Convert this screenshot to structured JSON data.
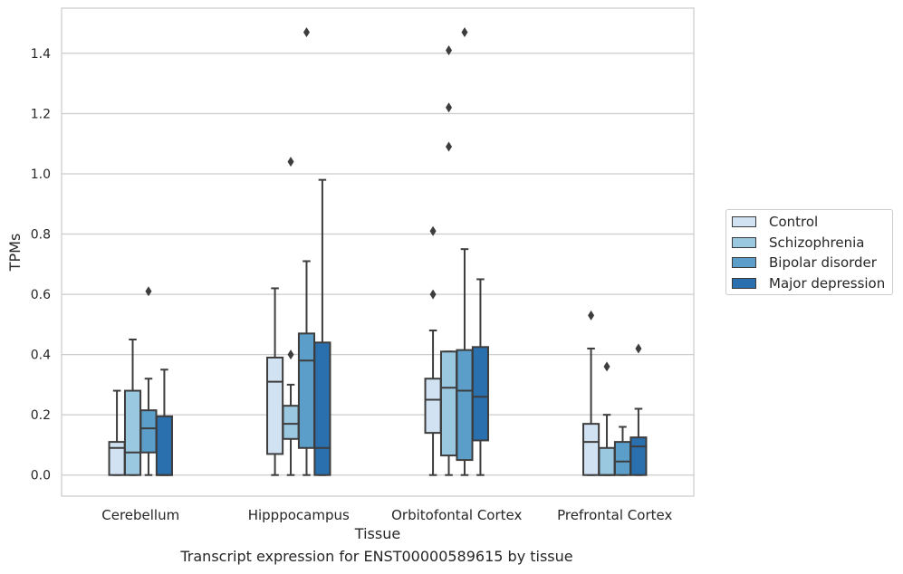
{
  "caption": "Transcript expression for ENST00000589615 by tissue",
  "chart_data": {
    "type": "box",
    "title": "",
    "xlabel": "Tissue",
    "ylabel": "TPMs",
    "ylim": [
      -0.07,
      1.55
    ],
    "yticks": [
      0.0,
      0.2,
      0.4,
      0.6,
      0.8,
      1.0,
      1.2,
      1.4
    ],
    "ytick_labels": [
      "0.0",
      "0.2",
      "0.4",
      "0.6",
      "0.8",
      "1.0",
      "1.2",
      "1.4"
    ],
    "grid": "horizontal",
    "legend_position": "right",
    "categories": [
      "Cerebellum",
      "Hipppocampus",
      "Orbitofontal Cortex",
      "Prefrontal Cortex"
    ],
    "series": [
      {
        "name": "Control",
        "color": "#d1e2f2",
        "boxes": [
          {
            "min": 0.0,
            "q1": 0.0,
            "median": 0.09,
            "q3": 0.11,
            "max": 0.28,
            "outliers": []
          },
          {
            "min": 0.0,
            "q1": 0.07,
            "median": 0.31,
            "q3": 0.39,
            "max": 0.62,
            "outliers": []
          },
          {
            "min": 0.0,
            "q1": 0.14,
            "median": 0.25,
            "q3": 0.32,
            "max": 0.48,
            "outliers": [
              0.6,
              0.81
            ]
          },
          {
            "min": 0.0,
            "q1": 0.0,
            "median": 0.11,
            "q3": 0.17,
            "max": 0.42,
            "outliers": [
              0.53
            ]
          }
        ]
      },
      {
        "name": "Schizophrenia",
        "color": "#9ac8e0",
        "boxes": [
          {
            "min": 0.0,
            "q1": 0.0,
            "median": 0.075,
            "q3": 0.28,
            "max": 0.45,
            "outliers": []
          },
          {
            "min": 0.0,
            "q1": 0.12,
            "median": 0.17,
            "q3": 0.23,
            "max": 0.3,
            "outliers": [
              0.4,
              1.04
            ]
          },
          {
            "min": 0.0,
            "q1": 0.065,
            "median": 0.29,
            "q3": 0.41,
            "max": 0.41,
            "outliers": [
              1.09,
              1.22,
              1.41
            ]
          },
          {
            "min": 0.0,
            "q1": 0.0,
            "median": 0.0,
            "q3": 0.09,
            "max": 0.2,
            "outliers": [
              0.36
            ]
          }
        ]
      },
      {
        "name": "Bipolar disorder",
        "color": "#5a9ec9",
        "boxes": [
          {
            "min": 0.0,
            "q1": 0.075,
            "median": 0.155,
            "q3": 0.215,
            "max": 0.32,
            "outliers": [
              0.61
            ]
          },
          {
            "min": 0.0,
            "q1": 0.09,
            "median": 0.38,
            "q3": 0.47,
            "max": 0.71,
            "outliers": [
              1.47
            ]
          },
          {
            "min": 0.0,
            "q1": 0.05,
            "median": 0.28,
            "q3": 0.415,
            "max": 0.75,
            "outliers": [
              1.47
            ]
          },
          {
            "min": 0.0,
            "q1": 0.0,
            "median": 0.045,
            "q3": 0.11,
            "max": 0.16,
            "outliers": []
          }
        ]
      },
      {
        "name": "Major depression",
        "color": "#2a6fae",
        "boxes": [
          {
            "min": 0.0,
            "q1": 0.0,
            "median": 0.0,
            "q3": 0.195,
            "max": 0.35,
            "outliers": []
          },
          {
            "min": 0.0,
            "q1": 0.0,
            "median": 0.09,
            "q3": 0.44,
            "max": 0.98,
            "outliers": []
          },
          {
            "min": 0.0,
            "q1": 0.115,
            "median": 0.26,
            "q3": 0.425,
            "max": 0.65,
            "outliers": []
          },
          {
            "min": 0.0,
            "q1": 0.0,
            "median": 0.095,
            "q3": 0.125,
            "max": 0.22,
            "outliers": [
              0.42
            ]
          }
        ]
      }
    ]
  }
}
